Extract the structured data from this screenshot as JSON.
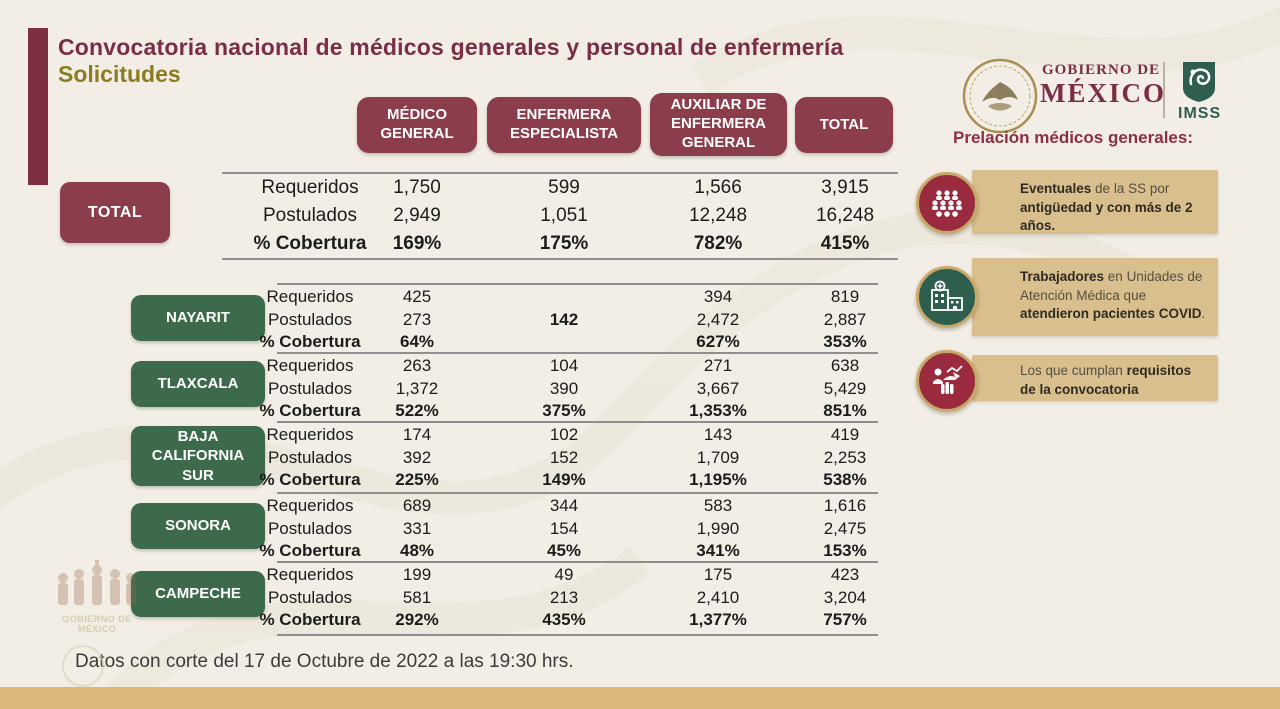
{
  "title": {
    "line1": "Convocatoria nacional de médicos generales y personal de enfermería",
    "line2": "Solicitudes"
  },
  "header_logos": {
    "gobierno_top": "GOBIERNO DE",
    "gobierno_bottom": "MÉXICO",
    "imss_label": "IMSS"
  },
  "sidebar": {
    "heading": "Prelación médicos generales:",
    "items": [
      {
        "icon": "people-group-icon",
        "segments": [
          {
            "t": "Eventuales",
            "b": true
          },
          {
            "t": " de la SS por ",
            "b": false
          },
          {
            "t": "antigüedad y con  más de 2 años.",
            "b": true
          }
        ]
      },
      {
        "icon": "medical-unit-icon",
        "segments": [
          {
            "t": "Trabajadores",
            "b": true
          },
          {
            "t": " en Unidades de Atención Médica que ",
            "b": false
          },
          {
            "t": "atendieron pacientes COVID",
            "b": true
          },
          {
            "t": ".",
            "b": false
          }
        ]
      },
      {
        "icon": "requirements-hand-icon",
        "segments": [
          {
            "t": "Los que cumplan ",
            "b": false
          },
          {
            "t": "requisitos de la convocatoria",
            "b": true
          }
        ]
      }
    ]
  },
  "table": {
    "column_headers": [
      "MÉDICO GENERAL",
      "ENFERMERA ESPECIALISTA",
      "AUXILIAR DE ENFERMERA GENERAL",
      "TOTAL"
    ],
    "blocks": [
      {
        "label": "TOTAL",
        "rows": [
          {
            "label": "Requeridos",
            "values": [
              "1,750",
              "599",
              "1,566",
              "3,915"
            ]
          },
          {
            "label": "Postulados",
            "values": [
              "2,949",
              "1,051",
              "12,248",
              "16,248"
            ]
          },
          {
            "label": "% Cobertura",
            "values": [
              "169%",
              "175%",
              "782%",
              "415%"
            ]
          }
        ]
      },
      {
        "label": "NAYARIT",
        "rows": [
          {
            "label": "Requeridos",
            "values": [
              "425",
              "",
              "394",
              "819"
            ]
          },
          {
            "label": "Postulados",
            "values": [
              "273",
              "142",
              "2,472",
              "2,887"
            ]
          },
          {
            "label": "% Cobertura",
            "values": [
              "64%",
              "",
              "627%",
              "353%"
            ]
          }
        ]
      },
      {
        "label": "TLAXCALA",
        "rows": [
          {
            "label": "Requeridos",
            "values": [
              "263",
              "104",
              "271",
              "638"
            ]
          },
          {
            "label": "Postulados",
            "values": [
              "1,372",
              "390",
              "3,667",
              "5,429"
            ]
          },
          {
            "label": "% Cobertura",
            "values": [
              "522%",
              "375%",
              "1,353%",
              "851%"
            ]
          }
        ]
      },
      {
        "label": "BAJA CALIFORNIA SUR",
        "rows": [
          {
            "label": "Requeridos",
            "values": [
              "174",
              "102",
              "143",
              "419"
            ]
          },
          {
            "label": "Postulados",
            "values": [
              "392",
              "152",
              "1,709",
              "2,253"
            ]
          },
          {
            "label": "% Cobertura",
            "values": [
              "225%",
              "149%",
              "1,195%",
              "538%"
            ]
          }
        ]
      },
      {
        "label": "SONORA",
        "rows": [
          {
            "label": "Requeridos",
            "values": [
              "689",
              "344",
              "583",
              "1,616"
            ]
          },
          {
            "label": "Postulados",
            "values": [
              "331",
              "154",
              "1,990",
              "2,475"
            ]
          },
          {
            "label": "% Cobertura",
            "values": [
              "48%",
              "45%",
              "341%",
              "153%"
            ]
          }
        ]
      },
      {
        "label": "CAMPECHE",
        "rows": [
          {
            "label": "Requeridos",
            "values": [
              "199",
              "49",
              "175",
              "423"
            ]
          },
          {
            "label": "Postulados",
            "values": [
              "581",
              "213",
              "2,410",
              "3,204"
            ]
          },
          {
            "label": "% Cobertura",
            "values": [
              "292%",
              "435%",
              "1,377%",
              "757%"
            ]
          }
        ]
      }
    ]
  },
  "footer": {
    "note": "Datos con corte del 17 de Octubre de 2022 a las 19:30 hrs."
  },
  "watermark": {
    "label": "GOBIERNO DE MÉXICO"
  },
  "colors": {
    "maroon": "#8c3d4b",
    "title_maroon": "#7b2d45",
    "olive": "#8a7c20",
    "green": "#3c6a4a",
    "tan_bar": "#ddb87a",
    "tan_box": "#d8bf8d",
    "background": "#f2eee5"
  }
}
